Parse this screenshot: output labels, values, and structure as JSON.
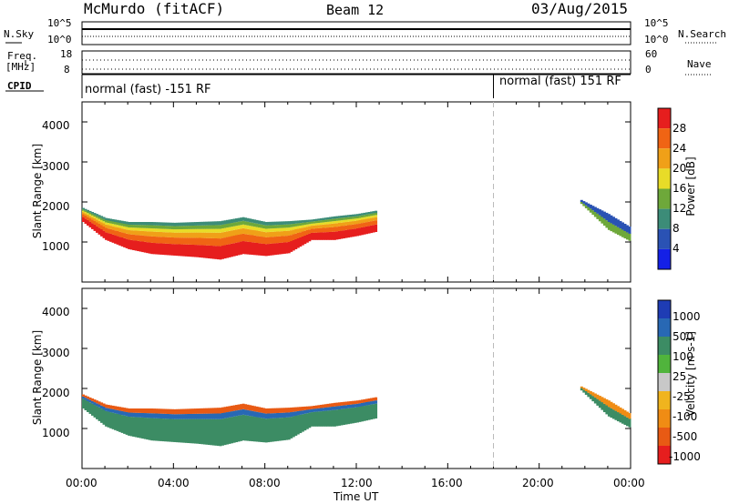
{
  "header": {
    "station": "McMurdo (fitACF)",
    "beam": "Beam 12",
    "date": "03/Aug/2015"
  },
  "status_panels": {
    "nsky_label": "N.Sky",
    "nsearch_label": "N.Search",
    "freq_label_top": "Freq.",
    "freq_label_bottom": "[MHz]",
    "nave_label": "Nave",
    "cpid_label": "CPID",
    "noise_ticks_left": [
      "10^5",
      "10^0"
    ],
    "noise_ticks_right": [
      "10^5",
      "10^0"
    ],
    "freq_ticks": [
      "18",
      "8"
    ],
    "nave_ticks": [
      "60",
      "0"
    ],
    "cpid_segments": [
      {
        "label": "normal (fast) -151 RF",
        "start_hour": 0
      },
      {
        "label": "normal (fast) 151 RF",
        "start_hour": 18
      }
    ]
  },
  "chart_data": [
    {
      "type": "heatmap",
      "name": "power",
      "xlabel": "",
      "ylabel": "Slant Range [km]",
      "xlim": [
        0,
        24
      ],
      "ylim": [
        0,
        4500
      ],
      "yticks": [
        "1000",
        "2000",
        "3000",
        "4000"
      ],
      "colorbar": {
        "label": "Power [dB]",
        "ticks": [
          "4",
          "8",
          "12",
          "16",
          "20",
          "24",
          "28"
        ],
        "colors": [
          "#1420e6",
          "#2a52b4",
          "#3c8c78",
          "#6ea83a",
          "#e8dc28",
          "#f0a018",
          "#f06414",
          "#e61e1e"
        ]
      },
      "boundary_km": [
        [
          0,
          1850
        ],
        [
          1,
          1600
        ],
        [
          2,
          1500
        ],
        [
          3,
          1500
        ],
        [
          4,
          1480
        ],
        [
          5,
          1500
        ],
        [
          6,
          1520
        ],
        [
          7,
          1620
        ],
        [
          8,
          1500
        ],
        [
          9,
          1520
        ],
        [
          10,
          1560
        ],
        [
          11,
          1640
        ],
        [
          12,
          1700
        ],
        [
          12.8,
          1780
        ]
      ],
      "lower_km": [
        [
          0,
          1500
        ],
        [
          1,
          1050
        ],
        [
          2,
          820
        ],
        [
          3,
          700
        ],
        [
          4,
          660
        ],
        [
          5,
          620
        ],
        [
          6,
          560
        ],
        [
          7,
          700
        ],
        [
          8,
          650
        ],
        [
          9,
          720
        ],
        [
          10,
          1050
        ],
        [
          11,
          1050
        ],
        [
          12,
          1150
        ],
        [
          12.8,
          1250
        ]
      ],
      "late_band_km": [
        [
          21.8,
          2050
        ],
        [
          23,
          1700
        ],
        [
          24,
          1350
        ]
      ],
      "late_lower_km": [
        [
          21.8,
          1950
        ],
        [
          23,
          1300
        ],
        [
          24,
          1000
        ]
      ]
    },
    {
      "type": "heatmap",
      "name": "velocity",
      "xlabel": "Time UT",
      "ylabel": "Slant Range [km]",
      "xlim": [
        0,
        24
      ],
      "ylim": [
        0,
        4500
      ],
      "xticks": [
        "00:00",
        "04:00",
        "08:00",
        "12:00",
        "16:00",
        "20:00",
        "00:00"
      ],
      "yticks": [
        "1000",
        "2000",
        "3000",
        "4000"
      ],
      "colorbar": {
        "label": "Velocity [m s-1]",
        "ticks": [
          "1000",
          "500",
          "100",
          "25",
          "-25",
          "-100",
          "-500",
          "-1000"
        ],
        "colors": [
          "#1e3cb4",
          "#2868b4",
          "#3c8c64",
          "#50b43c",
          "#c8c8c8",
          "#f0b41e",
          "#f08c14",
          "#e85a14",
          "#e61e1e"
        ]
      }
    }
  ]
}
